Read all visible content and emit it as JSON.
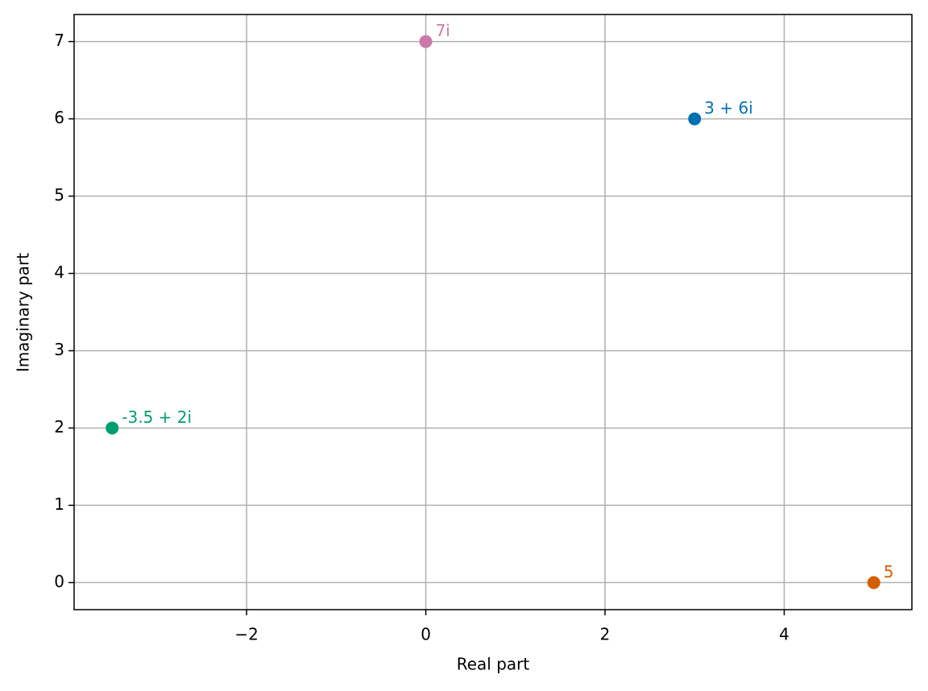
{
  "chart_data": {
    "type": "scatter",
    "xlabel": "Real part",
    "ylabel": "Imaginary part",
    "series": [
      {
        "name": "3 + 6i",
        "color": "#0072b2",
        "x": [
          3
        ],
        "values": [
          6
        ]
      },
      {
        "name": "5",
        "color": "#d55e00",
        "x": [
          5
        ],
        "values": [
          0
        ]
      },
      {
        "name": "-3.5 + 2i",
        "color": "#009e73",
        "x": [
          -3.5
        ],
        "values": [
          2
        ]
      },
      {
        "name": "7i",
        "color": "#cc79a7",
        "x": [
          0
        ],
        "values": [
          7
        ]
      }
    ],
    "xlim": [
      -3.925,
      5.425
    ],
    "xticks": [
      {
        "value": -2,
        "label": "−2"
      },
      0,
      2,
      4
    ],
    "ylim": [
      -0.35,
      7.35
    ],
    "yticks": [
      0,
      1,
      2,
      3,
      4,
      5,
      6,
      7
    ],
    "grid": true
  }
}
